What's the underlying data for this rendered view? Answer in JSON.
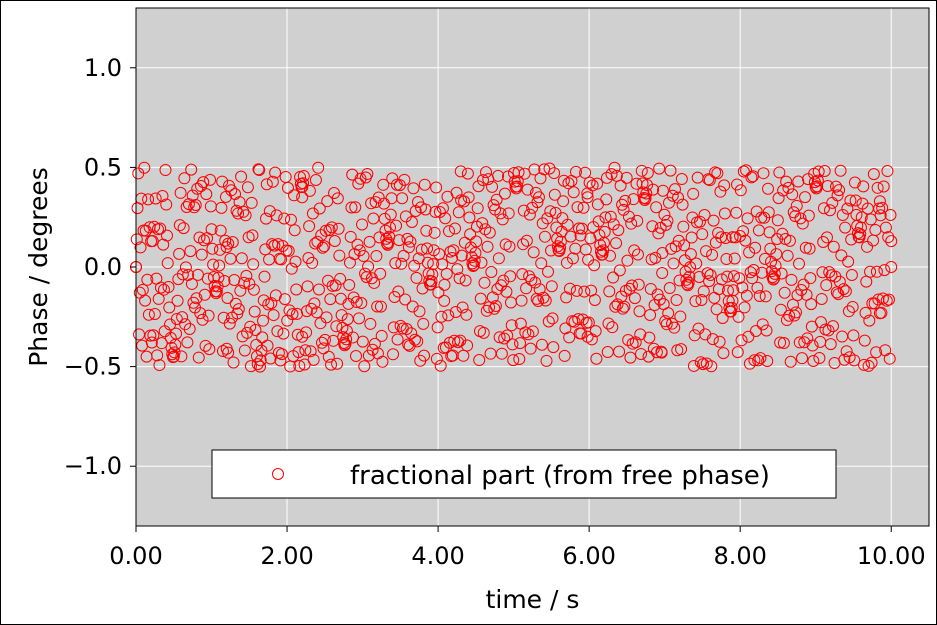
{
  "chart_data": {
    "type": "scatter",
    "title": "",
    "xlabel": "time / s",
    "ylabel": "Phase / degrees",
    "xlim": [
      0,
      10.5
    ],
    "ylim": [
      -1.3,
      1.3
    ],
    "xticks": [
      0,
      2,
      4,
      6,
      8,
      10
    ],
    "xtick_labels": [
      "0.00",
      "2.00",
      "4.00",
      "6.00",
      "8.00",
      "10.00"
    ],
    "yticks": [
      -1.0,
      -0.5,
      0.0,
      0.5,
      1.0
    ],
    "ytick_labels": [
      "−1.0",
      "−0.5",
      "0.0",
      "0.5",
      "1.0"
    ],
    "grid": true,
    "background_color": "#d0d0d0",
    "marker": "open-circle",
    "marker_color": "#ff0000",
    "legend_position": "lower-center",
    "series": [
      {
        "name": "fractional part (from free phase)",
        "color": "#ff0000",
        "x_range": [
          0,
          10
        ],
        "sample_count": 1000,
        "value_range": [
          -0.5,
          0.5
        ],
        "key_points": [
          {
            "x": 0.0,
            "y": 0.0
          },
          {
            "x": 1.2,
            "y": 0.1
          },
          {
            "x": 1.22,
            "y": -0.43
          },
          {
            "x": 2.2,
            "y": 0.35
          },
          {
            "x": 2.2,
            "y": -0.35
          },
          {
            "x": 4.08,
            "y": -0.17
          },
          {
            "x": 4.3,
            "y": 0.48
          },
          {
            "x": 5.98,
            "y": -0.35
          },
          {
            "x": 5.98,
            "y": 0.35
          },
          {
            "x": 6.97,
            "y": 0.07
          },
          {
            "x": 6.96,
            "y": -0.43
          },
          {
            "x": 7.9,
            "y": 0.15
          },
          {
            "x": 9.85,
            "y": 0.33
          },
          {
            "x": 10.0,
            "y": 0.13
          }
        ]
      }
    ]
  }
}
